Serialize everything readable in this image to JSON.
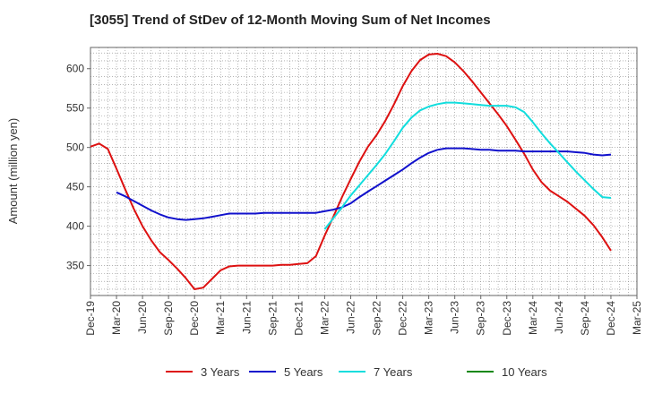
{
  "chart_data": {
    "type": "line",
    "title": "[3055]  Trend of StDev of 12-Month Moving Sum of Net Incomes",
    "xlabel": "",
    "ylabel": "Amount (million yen)",
    "ylim": [
      312,
      627
    ],
    "yticks": [
      350,
      400,
      450,
      500,
      550,
      600
    ],
    "xlim": [
      "Dec-19",
      "Mar-25"
    ],
    "xticks": [
      "Dec-19",
      "Mar-20",
      "Jun-20",
      "Sep-20",
      "Dec-20",
      "Mar-21",
      "Jun-21",
      "Sep-21",
      "Dec-21",
      "Mar-22",
      "Jun-22",
      "Sep-22",
      "Dec-22",
      "Mar-23",
      "Jun-23",
      "Sep-23",
      "Dec-23",
      "Mar-24",
      "Jun-24",
      "Sep-24",
      "Dec-24",
      "Mar-25"
    ],
    "grid": true,
    "legend_position": "bottom",
    "series": [
      {
        "name": "3 Years",
        "color": "#dd1111",
        "x": [
          "Dec-19",
          "Jan-20",
          "Feb-20",
          "Mar-20",
          "Apr-20",
          "May-20",
          "Jun-20",
          "Jul-20",
          "Aug-20",
          "Sep-20",
          "Oct-20",
          "Nov-20",
          "Dec-20",
          "Jan-21",
          "Feb-21",
          "Mar-21",
          "Apr-21",
          "May-21",
          "Jun-21",
          "Jul-21",
          "Aug-21",
          "Sep-21",
          "Oct-21",
          "Nov-21",
          "Dec-21",
          "Jan-22",
          "Feb-22",
          "Mar-22",
          "Apr-22",
          "May-22",
          "Jun-22",
          "Jul-22",
          "Aug-22",
          "Sep-22",
          "Oct-22",
          "Nov-22",
          "Dec-22",
          "Jan-23",
          "Feb-23",
          "Mar-23",
          "Apr-23",
          "May-23",
          "Jun-23",
          "Jul-23",
          "Aug-23",
          "Sep-23",
          "Oct-23",
          "Nov-23",
          "Dec-23",
          "Jan-24",
          "Feb-24",
          "Mar-24",
          "Apr-24",
          "May-24",
          "Jun-24",
          "Jul-24",
          "Aug-24",
          "Sep-24",
          "Oct-24",
          "Nov-24",
          "Dec-24"
        ],
        "values": [
          501,
          505,
          498,
          473,
          447,
          422,
          400,
          382,
          367,
          357,
          346,
          334,
          320,
          322,
          333,
          344,
          349,
          350,
          350,
          350,
          350,
          350,
          351,
          351,
          352,
          353,
          362,
          388,
          412,
          437,
          460,
          482,
          501,
          516,
          534,
          555,
          578,
          597,
          611,
          618,
          619,
          616,
          608,
          597,
          584,
          570,
          556,
          542,
          527,
          510,
          492,
          472,
          456,
          445,
          438,
          431,
          422,
          413,
          401,
          386,
          369
        ]
      },
      {
        "name": "5 Years",
        "color": "#1111cc",
        "x": [
          "Dec-19",
          "Jan-20",
          "Feb-20",
          "Mar-20",
          "Apr-20",
          "May-20",
          "Jun-20",
          "Jul-20",
          "Aug-20",
          "Sep-20",
          "Oct-20",
          "Nov-20",
          "Dec-20",
          "Jan-21",
          "Feb-21",
          "Mar-21",
          "Apr-21",
          "May-21",
          "Jun-21",
          "Jul-21",
          "Aug-21",
          "Sep-21",
          "Oct-21",
          "Nov-21",
          "Dec-21",
          "Jan-22",
          "Feb-22",
          "Mar-22",
          "Apr-22",
          "May-22",
          "Jun-22",
          "Jul-22",
          "Aug-22",
          "Sep-22",
          "Oct-22",
          "Nov-22",
          "Dec-22",
          "Jan-23",
          "Feb-23",
          "Mar-23",
          "Apr-23",
          "May-23",
          "Jun-23",
          "Jul-23",
          "Aug-23",
          "Sep-23",
          "Oct-23",
          "Nov-23",
          "Dec-23",
          "Jan-24",
          "Feb-24",
          "Mar-24",
          "Apr-24",
          "May-24",
          "Jun-24",
          "Jul-24",
          "Aug-24",
          "Sep-24",
          "Oct-24",
          "Nov-24",
          "Dec-24"
        ],
        "values": [
          null,
          null,
          null,
          443,
          438,
          432,
          426,
          420,
          415,
          411,
          409,
          408,
          409,
          410,
          412,
          414,
          416,
          416,
          416,
          416,
          417,
          417,
          417,
          417,
          417,
          417,
          417,
          419,
          421,
          424,
          429,
          437,
          444,
          451,
          458,
          465,
          472,
          480,
          487,
          493,
          497,
          499,
          499,
          499,
          498,
          497,
          497,
          496,
          496,
          496,
          495,
          495,
          495,
          495,
          495,
          495,
          494,
          493,
          491,
          490,
          491
        ]
      },
      {
        "name": "7 Years",
        "color": "#11dddd",
        "x": [
          "Mar-22",
          "Apr-22",
          "May-22",
          "Jun-22",
          "Jul-22",
          "Aug-22",
          "Sep-22",
          "Oct-22",
          "Nov-22",
          "Dec-22",
          "Jan-23",
          "Feb-23",
          "Mar-23",
          "Apr-23",
          "May-23",
          "Jun-23",
          "Jul-23",
          "Aug-23",
          "Sep-23",
          "Oct-23",
          "Nov-23",
          "Dec-23",
          "Jan-24",
          "Feb-24",
          "Mar-24",
          "Apr-24",
          "May-24",
          "Jun-24",
          "Jul-24",
          "Aug-24",
          "Sep-24",
          "Oct-24",
          "Nov-24",
          "Dec-24"
        ],
        "values": [
          396,
          410,
          424,
          439,
          452,
          465,
          478,
          492,
          508,
          525,
          538,
          547,
          552,
          555,
          557,
          557,
          556,
          555,
          554,
          553,
          553,
          553,
          551,
          545,
          532,
          518,
          505,
          493,
          481,
          469,
          458,
          447,
          437,
          436
        ]
      },
      {
        "name": "10 Years",
        "color": "#118811",
        "x": [],
        "values": []
      }
    ]
  }
}
